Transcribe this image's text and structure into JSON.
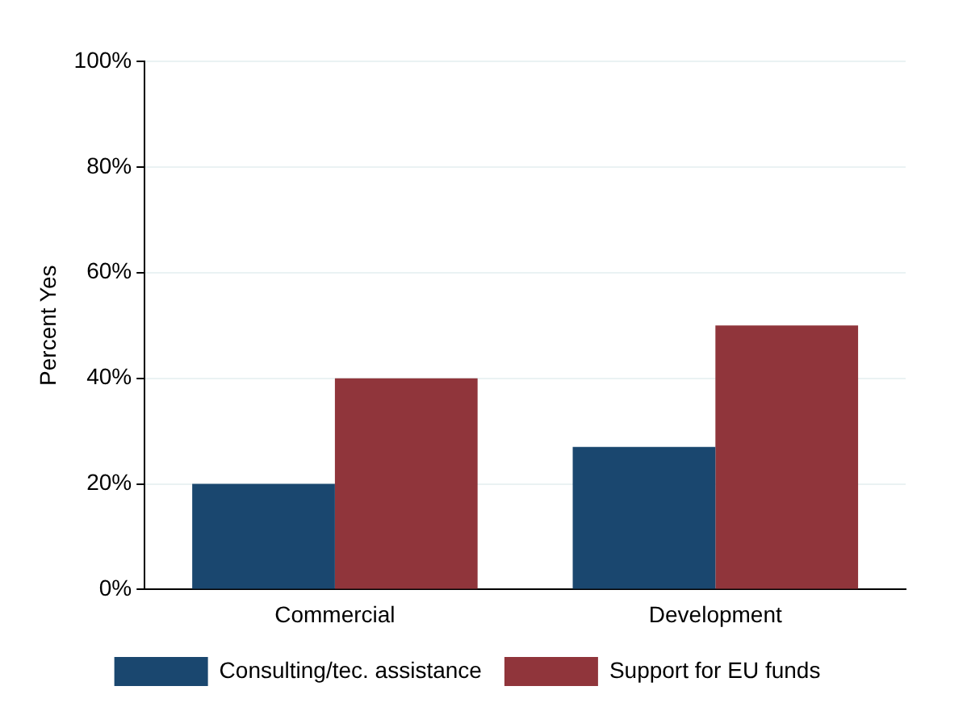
{
  "chart_data": {
    "type": "bar",
    "ylabel": "Percent Yes",
    "categories": [
      "Commercial",
      "Development"
    ],
    "series": [
      {
        "name": "Consulting/tec. assistance",
        "color": "#1a476f",
        "values": [
          20,
          27
        ]
      },
      {
        "name": "Support for EU funds",
        "color": "#90353b",
        "values": [
          40,
          50
        ]
      }
    ],
    "ylim": [
      0,
      100
    ],
    "yticks": [
      {
        "value": 0,
        "label": "0%"
      },
      {
        "value": 20,
        "label": "20%"
      },
      {
        "value": 40,
        "label": "40%"
      },
      {
        "value": 60,
        "label": "60%"
      },
      {
        "value": 80,
        "label": "80%"
      },
      {
        "value": 100,
        "label": "100%"
      }
    ],
    "grid": "y",
    "legend": "bottom"
  }
}
